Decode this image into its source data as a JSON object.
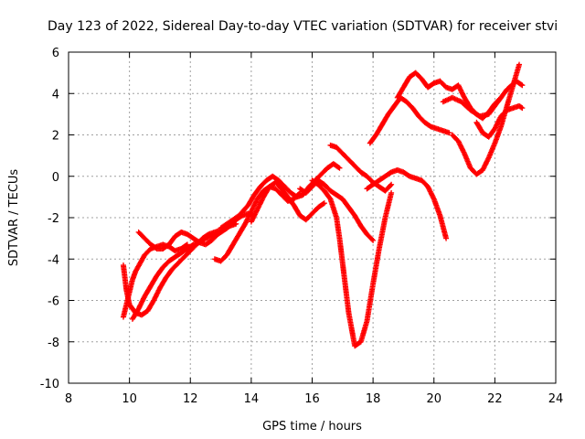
{
  "chart_data": {
    "type": "scatter",
    "title": "Day 123 of 2022, Sidereal Day-to-day VTEC variation (SDTVAR) for receiver stvi",
    "xlabel": "GPS time / hours",
    "ylabel": "SDTVAR / TECUs",
    "xlim": [
      8,
      24
    ],
    "ylim": [
      -10,
      6
    ],
    "x_ticks": [
      8,
      10,
      12,
      14,
      16,
      18,
      20,
      22,
      24
    ],
    "y_ticks": [
      -10,
      -8,
      -6,
      -4,
      -2,
      0,
      2,
      4,
      6
    ],
    "grid": true,
    "marker": "plus",
    "color": "#ff0000",
    "series": [
      {
        "x": [
          9.8,
          9.9,
          10.0,
          10.1,
          10.2,
          10.35,
          10.5,
          10.7,
          10.9,
          11.1,
          11.3,
          11.5,
          11.7,
          11.9
        ],
        "y": [
          -6.8,
          -6.2,
          -5.6,
          -5.0,
          -4.6,
          -4.2,
          -3.8,
          -3.5,
          -3.4,
          -3.3,
          -3.4,
          -3.6,
          -3.5,
          -3.3
        ]
      },
      {
        "x": [
          9.8,
          9.9,
          10.0,
          10.2,
          10.4,
          10.6,
          10.8,
          11.0,
          11.2,
          11.4,
          11.6,
          11.8,
          12.0,
          12.2,
          12.4,
          12.6,
          12.8,
          13.0
        ],
        "y": [
          -4.3,
          -5.5,
          -6.2,
          -6.6,
          -6.7,
          -6.5,
          -6.0,
          -5.4,
          -4.9,
          -4.5,
          -4.2,
          -3.9,
          -3.6,
          -3.3,
          -3.0,
          -2.8,
          -2.7,
          -2.6
        ]
      },
      {
        "x": [
          10.1,
          10.3,
          10.5,
          10.7,
          10.9,
          11.1,
          11.3,
          11.5,
          11.7,
          11.9,
          12.1,
          12.3,
          12.5,
          12.7,
          12.9,
          13.1,
          13.3,
          13.5
        ],
        "y": [
          -6.9,
          -6.4,
          -5.8,
          -5.3,
          -4.8,
          -4.4,
          -4.1,
          -3.9,
          -3.7,
          -3.5,
          -3.3,
          -3.2,
          -3.0,
          -2.9,
          -2.8,
          -2.6,
          -2.4,
          -2.3
        ]
      },
      {
        "x": [
          10.3,
          10.5,
          10.7,
          10.9,
          11.1,
          11.3,
          11.5,
          11.7,
          11.9,
          12.1,
          12.3,
          12.5,
          12.7,
          12.9,
          13.1,
          13.3,
          13.5,
          13.7,
          13.9,
          14.1
        ],
        "y": [
          -2.7,
          -3.0,
          -3.3,
          -3.5,
          -3.5,
          -3.3,
          -2.9,
          -2.7,
          -2.8,
          -3.0,
          -3.2,
          -3.3,
          -3.1,
          -2.8,
          -2.6,
          -2.4,
          -2.1,
          -1.9,
          -1.8,
          -1.9
        ]
      },
      {
        "x": [
          12.8,
          13.0,
          13.2,
          13.4,
          13.6,
          13.8,
          14.0,
          14.2,
          14.4,
          14.6,
          14.8,
          15.0,
          15.2,
          15.4,
          15.6
        ],
        "y": [
          -4.0,
          -4.1,
          -3.8,
          -3.3,
          -2.8,
          -2.3,
          -1.7,
          -1.1,
          -0.7,
          -0.5,
          -0.6,
          -0.9,
          -1.2,
          -1.1,
          -0.8
        ]
      },
      {
        "x": [
          13.0,
          13.3,
          13.6,
          13.9,
          14.1,
          14.3,
          14.5,
          14.7,
          14.9,
          15.1,
          15.3,
          15.5,
          15.7,
          15.9,
          16.1,
          16.3,
          16.5,
          16.7,
          16.9
        ],
        "y": [
          -2.5,
          -2.2,
          -1.9,
          -1.4,
          -0.9,
          -0.5,
          -0.2,
          0.0,
          -0.2,
          -0.5,
          -0.8,
          -1.0,
          -0.9,
          -0.5,
          -0.2,
          0.1,
          0.4,
          0.6,
          0.4
        ]
      },
      {
        "x": [
          14.0,
          14.2,
          14.4,
          14.6,
          14.8,
          15.0,
          15.2,
          15.4,
          15.6,
          15.8,
          16.0,
          16.2,
          16.4
        ],
        "y": [
          -2.2,
          -1.6,
          -1.0,
          -0.5,
          -0.3,
          -0.6,
          -1.0,
          -1.4,
          -1.9,
          -2.1,
          -1.8,
          -1.5,
          -1.3
        ]
      },
      {
        "x": [
          15.6,
          15.8,
          16.0,
          16.2,
          16.4,
          16.6,
          16.8,
          17.0,
          17.2,
          17.4,
          17.6,
          17.8,
          18.0
        ],
        "y": [
          -0.6,
          -0.8,
          -0.5,
          -0.2,
          -0.4,
          -0.7,
          -0.9,
          -1.1,
          -1.5,
          -1.9,
          -2.4,
          -2.8,
          -3.1
        ]
      },
      {
        "x": [
          16.0,
          16.2,
          16.4,
          16.6,
          16.8,
          16.9,
          17.0,
          17.1,
          17.2,
          17.3,
          17.4,
          17.6,
          17.8,
          18.0,
          18.2,
          18.4,
          18.6
        ],
        "y": [
          -0.2,
          -0.4,
          -0.7,
          -1.1,
          -2.0,
          -3.0,
          -4.2,
          -5.4,
          -6.6,
          -7.4,
          -8.2,
          -8.0,
          -7.0,
          -5.2,
          -3.5,
          -2.0,
          -0.8
        ]
      },
      {
        "x": [
          16.6,
          16.8,
          17.0,
          17.2,
          17.4,
          17.6,
          17.8,
          18.0,
          18.2,
          18.4,
          18.6
        ],
        "y": [
          1.5,
          1.4,
          1.1,
          0.8,
          0.5,
          0.2,
          0.0,
          -0.3,
          -0.5,
          -0.7,
          -0.4
        ]
      },
      {
        "x": [
          17.8,
          18.0,
          18.2,
          18.4,
          18.6,
          18.8,
          19.0,
          19.2,
          19.4,
          19.6,
          19.8,
          20.0,
          20.2,
          20.4
        ],
        "y": [
          -0.6,
          -0.4,
          -0.2,
          0.0,
          0.2,
          0.3,
          0.2,
          0.0,
          -0.1,
          -0.2,
          -0.5,
          -1.1,
          -1.9,
          -3.0
        ]
      },
      {
        "x": [
          17.9,
          18.1,
          18.3,
          18.5,
          18.7,
          18.9,
          19.1,
          19.3,
          19.5,
          19.7,
          19.9,
          20.1,
          20.3,
          20.5
        ],
        "y": [
          1.6,
          2.0,
          2.5,
          3.0,
          3.4,
          3.8,
          3.6,
          3.3,
          2.9,
          2.6,
          2.4,
          2.3,
          2.2,
          2.1
        ]
      },
      {
        "x": [
          18.8,
          19.0,
          19.2,
          19.4,
          19.6,
          19.8,
          20.0,
          20.2,
          20.4,
          20.6,
          20.8,
          21.0,
          21.2,
          21.4,
          21.6,
          21.8,
          22.0,
          22.2
        ],
        "y": [
          3.8,
          4.3,
          4.8,
          5.0,
          4.7,
          4.3,
          4.5,
          4.6,
          4.3,
          4.2,
          4.4,
          3.8,
          3.3,
          3.0,
          2.8,
          3.1,
          3.5,
          3.8
        ]
      },
      {
        "x": [
          20.6,
          20.8,
          21.0,
          21.2,
          21.4,
          21.6,
          21.8,
          22.0,
          22.2,
          22.4,
          22.6,
          22.8
        ],
        "y": [
          2.0,
          1.7,
          1.1,
          0.4,
          0.1,
          0.3,
          0.9,
          1.6,
          2.4,
          3.4,
          4.4,
          5.4
        ]
      },
      {
        "x": [
          20.3,
          20.6,
          20.9,
          21.2,
          21.5,
          21.8,
          22.1,
          22.4,
          22.7,
          22.9
        ],
        "y": [
          3.6,
          3.8,
          3.6,
          3.2,
          2.9,
          3.0,
          3.6,
          4.2,
          4.6,
          4.4
        ]
      },
      {
        "x": [
          21.4,
          21.6,
          21.8,
          22.0,
          22.2,
          22.4,
          22.6,
          22.8,
          22.9
        ],
        "y": [
          2.6,
          2.1,
          1.9,
          2.3,
          2.9,
          3.2,
          3.3,
          3.4,
          3.3
        ]
      }
    ]
  }
}
